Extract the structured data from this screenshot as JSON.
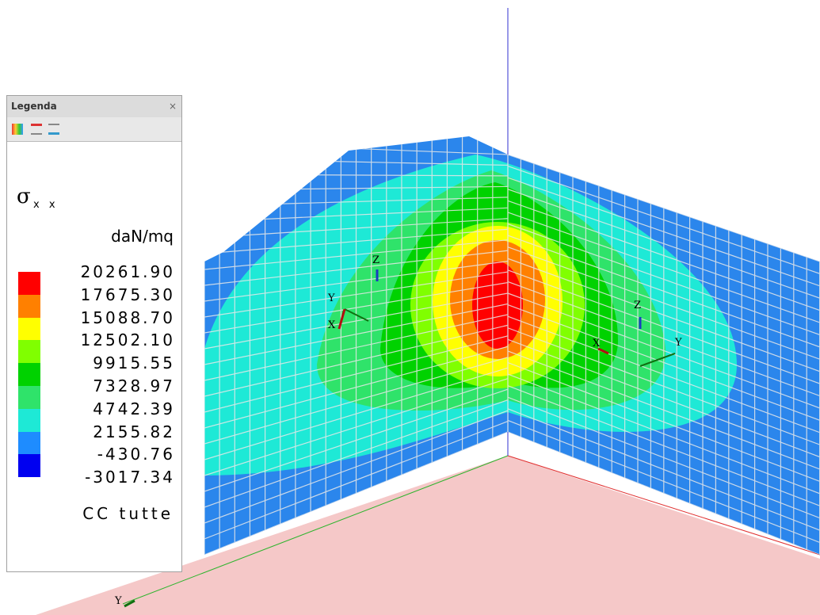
{
  "legend": {
    "title": "Legenda",
    "quantity": "σ",
    "quantity_subscript": "x x",
    "unit": "daN/mq",
    "values": [
      "20261.90",
      "17675.30",
      "15088.70",
      "12502.10",
      "9915.55",
      "7328.97",
      "4742.39",
      "2155.82",
      "-430.76",
      "-3017.34"
    ],
    "colors": [
      "#ff0000",
      "#ff8000",
      "#ffff00",
      "#80ff00",
      "#00d200",
      "#2fe36a",
      "#1ee9d6",
      "#1e8cff",
      "#0000f0"
    ],
    "load_case": "CC tutte"
  },
  "scene": {
    "axis_labels": [
      "Z",
      "Y",
      "X",
      "X",
      "Z",
      "Y",
      "Y"
    ]
  }
}
